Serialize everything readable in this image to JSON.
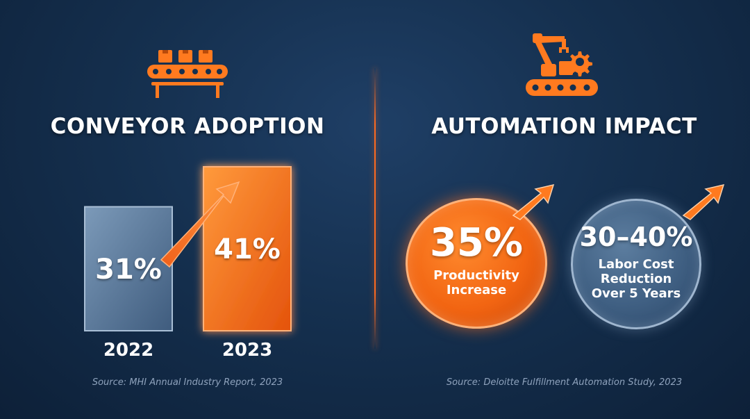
{
  "left_panel": {
    "title": "CONVEYOR ADOPTION",
    "source": "Source: MHI Annual Industry Report, 2023",
    "icon": "conveyor-belt-icon"
  },
  "right_panel": {
    "title": "AUTOMATION IMPACT",
    "source": "Source: Deloitte Fulfillment Automation Study, 2023",
    "icon": "robotic-arm-icon",
    "stats": [
      {
        "value": "35%",
        "label": "Productivity\nIncrease",
        "color": "#f26512"
      },
      {
        "value": "30–40%",
        "label": "Labor Cost\nReduction\nOver 5 Years",
        "color": "#3f5f82"
      }
    ]
  },
  "colors": {
    "accent": "#ff6a1f",
    "bar_2022": "#5b7a9c",
    "bar_2023": "#f26512",
    "background": "#15304f"
  },
  "chart_data": {
    "type": "bar",
    "categories": [
      "2022",
      "2023"
    ],
    "values": [
      31,
      41
    ],
    "labels": [
      "31%",
      "41%"
    ],
    "title": "CONVEYOR ADOPTION",
    "xlabel": "",
    "ylabel": "",
    "ylim": [
      0,
      41
    ],
    "grid": false
  }
}
